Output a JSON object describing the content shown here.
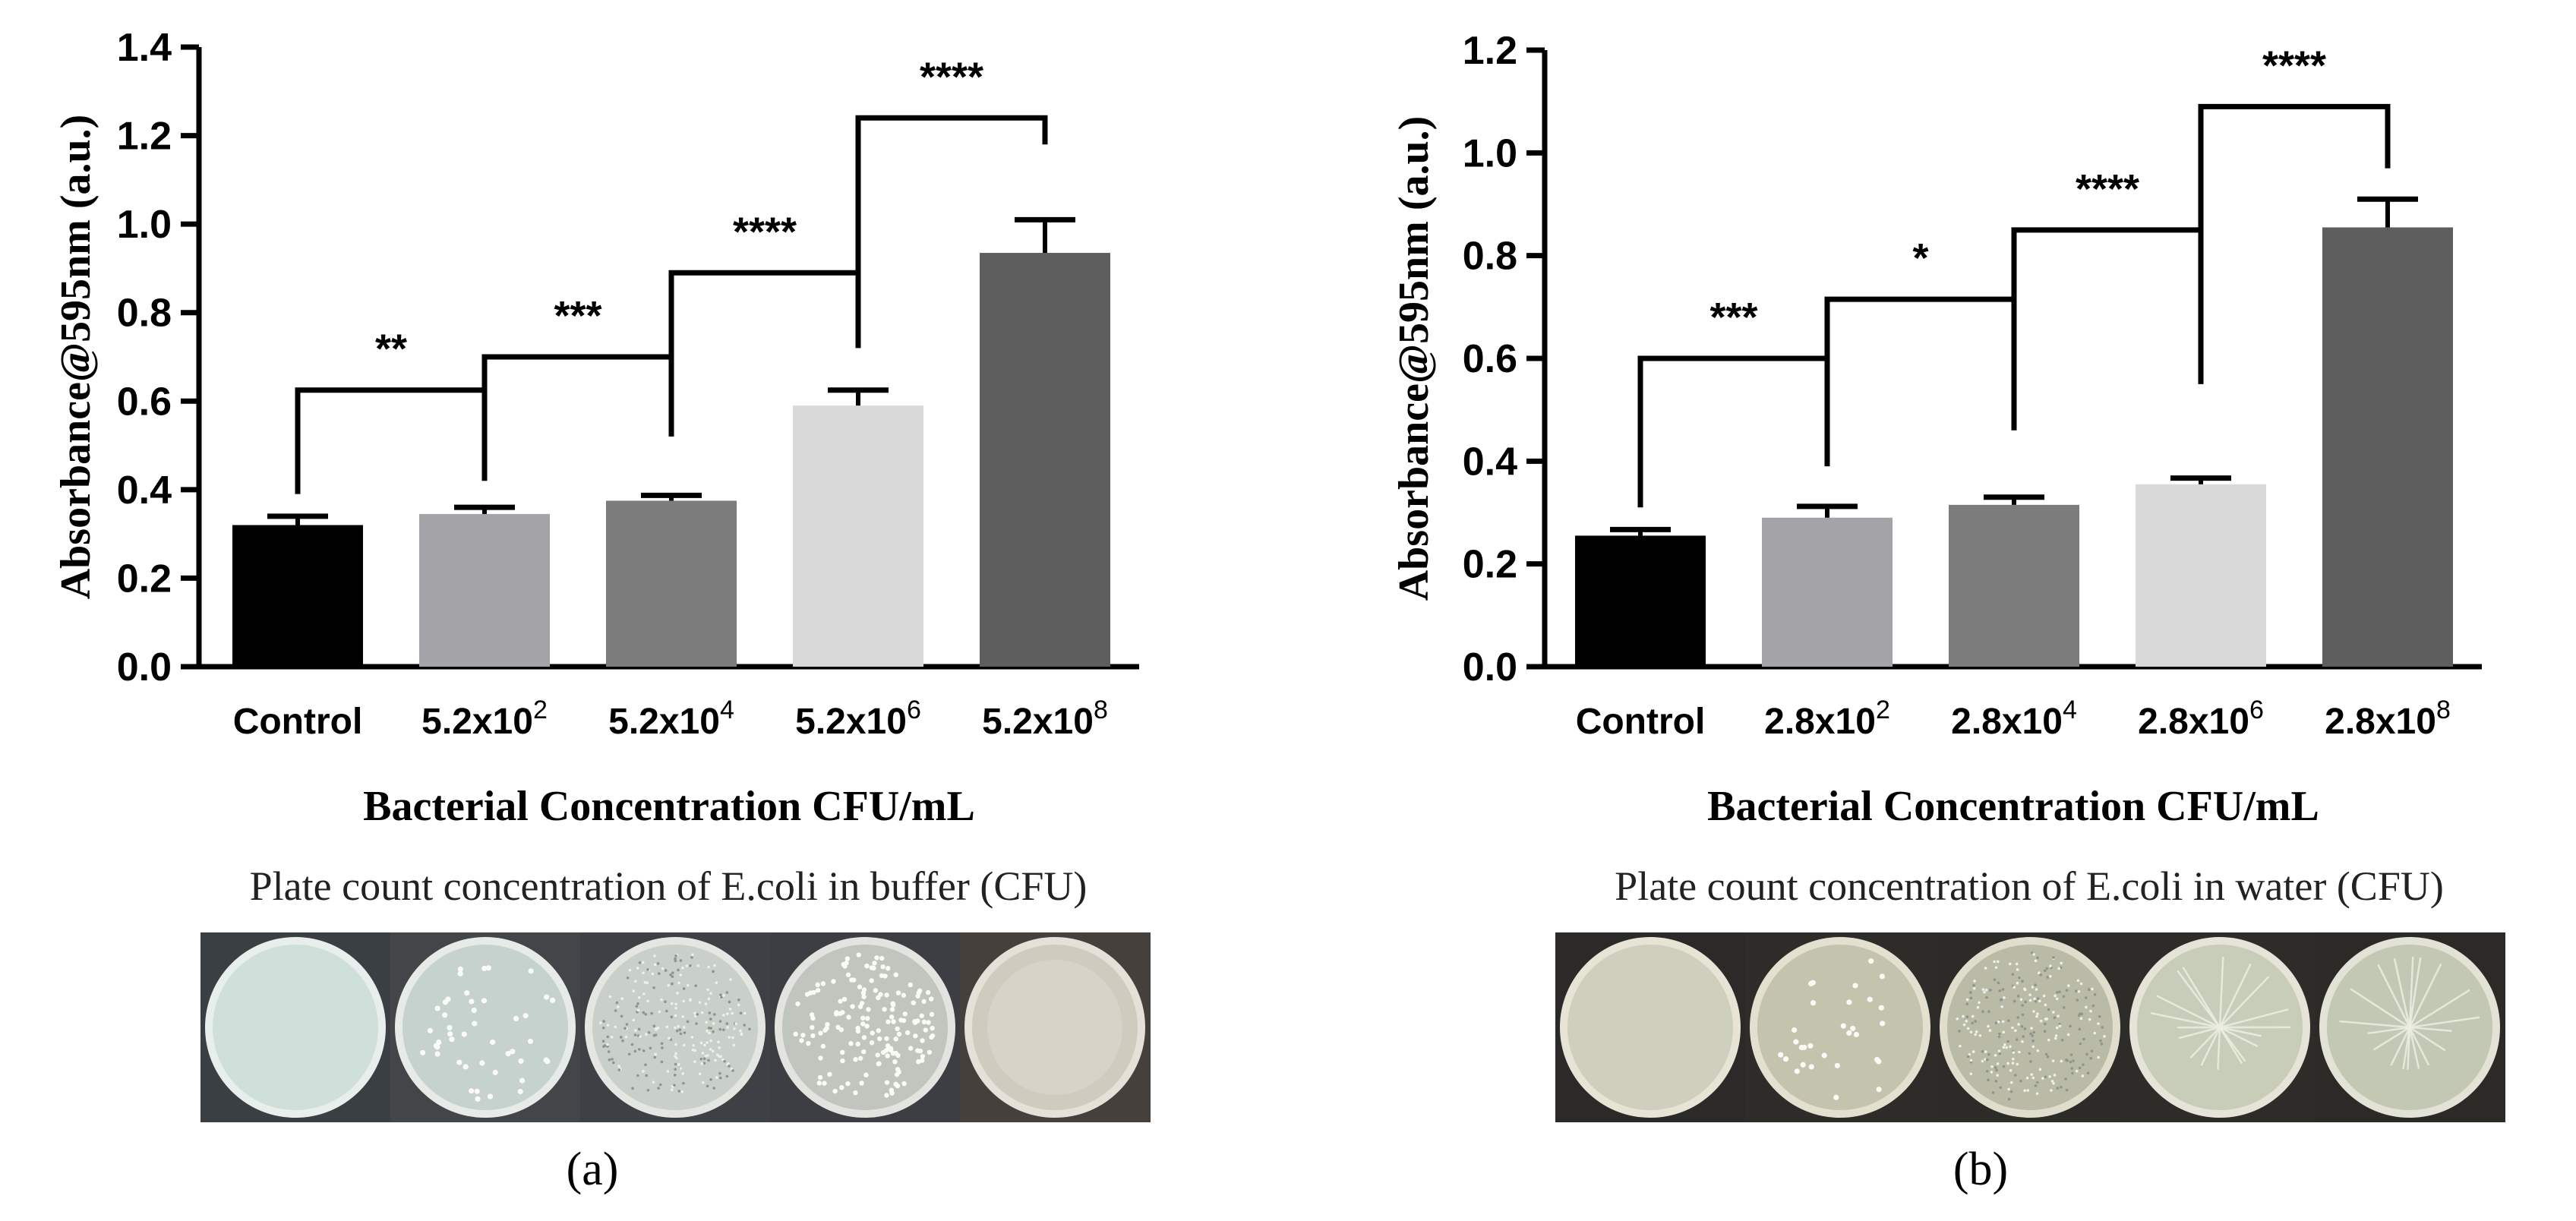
{
  "panels": [
    {
      "label": "(a)",
      "plate_caption": "Plate count concentration of E.coli in buffer (CFU)",
      "plate_colors": [
        {
          "bg": "#3a3f44",
          "dish": "#cfe0db",
          "rim": "#e8eeec",
          "colonies": 0,
          "texture": "none"
        },
        {
          "bg": "#434649",
          "dish": "#c6d2cd",
          "rim": "#e6ebe8",
          "colonies": 45,
          "texture": "dots"
        },
        {
          "bg": "#3d4045",
          "dish": "#c9d0c9",
          "rim": "#e4e6e2",
          "colonies": 0,
          "texture": "speckle"
        },
        {
          "bg": "#3c3e43",
          "dish": "#c0c5bd",
          "rim": "#e3e4e0",
          "colonies": 160,
          "texture": "dense"
        },
        {
          "bg": "#45403c",
          "dish": "#d0cbbf",
          "rim": "#e5e1d8",
          "colonies": 0,
          "texture": "haze"
        }
      ],
      "chart": {
        "type": "bar",
        "categories": [
          {
            "base": "Control",
            "exp": ""
          },
          {
            "base": "5.2x10",
            "exp": "2"
          },
          {
            "base": "5.2x10",
            "exp": "4"
          },
          {
            "base": "5.2x10",
            "exp": "6"
          },
          {
            "base": "5.2x10",
            "exp": "8"
          }
        ],
        "values": [
          0.32,
          0.345,
          0.375,
          0.59,
          0.935
        ],
        "errors": [
          0.02,
          0.015,
          0.012,
          0.035,
          0.075
        ],
        "colors": [
          "#000000",
          "#a4a3a8",
          "#7c7c7c",
          "#d9d9d9",
          "#5e5e5e"
        ],
        "xlabel": "Bacterial Concentration CFU/mL",
        "ylabel": "Absorbance@595nm (a.u.)",
        "ylim": [
          0,
          1.4
        ],
        "yticks": [
          "0.0",
          "0.2",
          "0.4",
          "0.6",
          "0.8",
          "1.0",
          "1.2",
          "1.4"
        ],
        "tick_step": 0.2,
        "brackets": [
          {
            "from": 0,
            "to": 1,
            "level": 0.625,
            "drop_from": 0.39,
            "drop_to": 0.42,
            "label": "**"
          },
          {
            "from": 1,
            "to": 2,
            "level": 0.7,
            "drop_from": 0.62,
            "drop_to": 0.52,
            "label": "***"
          },
          {
            "from": 2,
            "to": 3,
            "level": 0.89,
            "drop_from": 0.7,
            "drop_to": 0.72,
            "label": "****"
          },
          {
            "from": 3,
            "to": 4,
            "level": 1.24,
            "drop_from": 0.89,
            "drop_to": 1.18,
            "label": "****"
          }
        ]
      }
    },
    {
      "label": "(b)",
      "plate_caption": "Plate count concentration of E.coli in water (CFU)",
      "plate_colors": [
        {
          "bg": "#2b2a28",
          "dish": "#cfcfbd",
          "rim": "#e7e4d6",
          "colonies": 0,
          "texture": "none"
        },
        {
          "bg": "#2e2c29",
          "dish": "#c4c3ad",
          "rim": "#e3e0d0",
          "colonies": 30,
          "texture": "dots"
        },
        {
          "bg": "#2c2b28",
          "dish": "#b9bba6",
          "rim": "#e0ddcc",
          "colonies": 0,
          "texture": "speckle"
        },
        {
          "bg": "#2d2c29",
          "dish": "#c8cdb9",
          "rim": "#e6e4d8",
          "colonies": 0,
          "texture": "streak"
        },
        {
          "bg": "#2b2a27",
          "dish": "#c3c8b4",
          "rim": "#e3e2d6",
          "colonies": 0,
          "texture": "streak"
        }
      ],
      "chart": {
        "type": "bar",
        "categories": [
          {
            "base": "Control",
            "exp": ""
          },
          {
            "base": "2.8x10",
            "exp": "2"
          },
          {
            "base": "2.8x10",
            "exp": "4"
          },
          {
            "base": "2.8x10",
            "exp": "6"
          },
          {
            "base": "2.8x10",
            "exp": "8"
          }
        ],
        "values": [
          0.255,
          0.29,
          0.315,
          0.355,
          0.855
        ],
        "errors": [
          0.012,
          0.022,
          0.015,
          0.012,
          0.055
        ],
        "colors": [
          "#000000",
          "#a4a3a8",
          "#7c7c7c",
          "#d9d9d9",
          "#5e5e5e"
        ],
        "xlabel": "Bacterial Concentration CFU/mL",
        "ylabel": "Absorbance@595nm (a.u.)",
        "ylim": [
          0,
          1.2
        ],
        "yticks": [
          "0.0",
          "0.2",
          "0.4",
          "0.6",
          "0.8",
          "1.0",
          "1.2"
        ],
        "tick_step": 0.2,
        "brackets": [
          {
            "from": 0,
            "to": 1,
            "level": 0.6,
            "drop_from": 0.31,
            "drop_to": 0.39,
            "label": "***"
          },
          {
            "from": 1,
            "to": 2,
            "level": 0.715,
            "drop_from": 0.6,
            "drop_to": 0.46,
            "label": "*"
          },
          {
            "from": 2,
            "to": 3,
            "level": 0.85,
            "drop_from": 0.715,
            "drop_to": 0.55,
            "label": "****"
          },
          {
            "from": 3,
            "to": 4,
            "level": 1.09,
            "drop_from": 0.85,
            "drop_to": 0.97,
            "label": "****"
          }
        ]
      }
    }
  ],
  "chart_data": [
    {
      "type": "bar",
      "categories": [
        "Control",
        "5.2x10^2",
        "5.2x10^4",
        "5.2x10^6",
        "5.2x10^8"
      ],
      "values": [
        0.32,
        0.345,
        0.375,
        0.59,
        0.935
      ],
      "errors": [
        0.02,
        0.015,
        0.012,
        0.035,
        0.075
      ],
      "xlabel": "Bacterial Concentration CFU/mL",
      "ylabel": "Absorbance@595nm (a.u.)",
      "ylim": [
        0,
        1.4
      ],
      "significance": [
        "**",
        "***",
        "****",
        "****"
      ]
    },
    {
      "type": "bar",
      "categories": [
        "Control",
        "2.8x10^2",
        "2.8x10^4",
        "2.8x10^6",
        "2.8x10^8"
      ],
      "values": [
        0.255,
        0.29,
        0.315,
        0.355,
        0.855
      ],
      "errors": [
        0.012,
        0.022,
        0.015,
        0.012,
        0.055
      ],
      "xlabel": "Bacterial Concentration CFU/mL",
      "ylabel": "Absorbance@595nm (a.u.)",
      "ylim": [
        0,
        1.2
      ],
      "significance": [
        "***",
        "*",
        "****",
        "****"
      ]
    }
  ]
}
